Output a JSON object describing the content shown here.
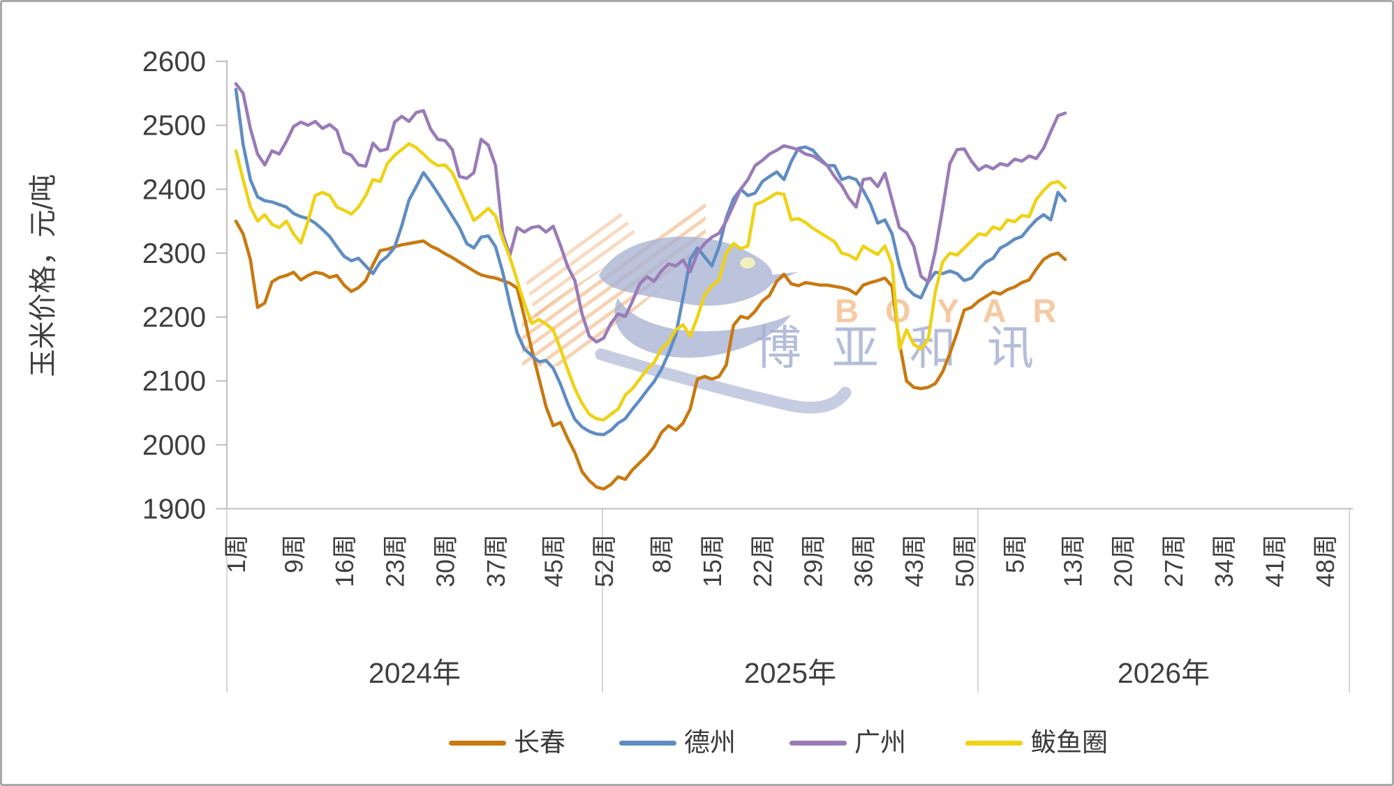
{
  "page": {
    "background": "#ffffff",
    "border_color": "#a9a9a9"
  },
  "watermark": {
    "latin": "BOYAR",
    "cjk": "博亚和讯"
  },
  "legend": [
    {
      "label": "长春",
      "color": "#C8790F"
    },
    {
      "label": "德州",
      "color": "#5F8DC3"
    },
    {
      "label": "广州",
      "color": "#9A7BB8"
    },
    {
      "label": "鲅鱼圈",
      "color": "#EFD215"
    }
  ],
  "chart_data": {
    "type": "line",
    "title": "",
    "ylabel": "玉米价格，元/吨",
    "xlabel": "",
    "ylim": [
      1900,
      2600
    ],
    "grid": false,
    "legend_position": "bottom",
    "y_ticks": [
      2600,
      2500,
      2400,
      2300,
      2200,
      2100,
      2000,
      1900
    ],
    "x_description": "weekly prices, 2024 week1 - 2026 week12; axis extends to 2026 week52",
    "x_ticks": [
      {
        "label": "1周",
        "i": 0
      },
      {
        "label": "9周",
        "i": 8
      },
      {
        "label": "16周",
        "i": 15
      },
      {
        "label": "23周",
        "i": 22
      },
      {
        "label": "30周",
        "i": 29
      },
      {
        "label": "37周",
        "i": 36
      },
      {
        "label": "45周",
        "i": 44
      },
      {
        "label": "52周",
        "i": 51
      },
      {
        "label": "8周",
        "i": 59
      },
      {
        "label": "15周",
        "i": 66
      },
      {
        "label": "22周",
        "i": 73
      },
      {
        "label": "29周",
        "i": 80
      },
      {
        "label": "36周",
        "i": 87
      },
      {
        "label": "43周",
        "i": 94
      },
      {
        "label": "50周",
        "i": 101
      },
      {
        "label": "5周",
        "i": 108
      },
      {
        "label": "13周",
        "i": 116
      },
      {
        "label": "20周",
        "i": 123
      },
      {
        "label": "27周",
        "i": 130
      },
      {
        "label": "34周",
        "i": 137
      },
      {
        "label": "41周",
        "i": 144
      },
      {
        "label": "48周",
        "i": 151
      }
    ],
    "year_groups": [
      {
        "label": "2024年",
        "weeks": 52
      },
      {
        "label": "2025年",
        "weeks": 52
      },
      {
        "label": "2026年",
        "weeks": 52
      }
    ],
    "series": [
      {
        "name": "长春",
        "color": "#C8790F",
        "values": [
          2350,
          2330,
          2290,
          2215,
          2222,
          2255,
          2262,
          2265,
          2270,
          2258,
          2265,
          2270,
          2268,
          2262,
          2265,
          2250,
          2240,
          2246,
          2257,
          2282,
          2304,
          2306,
          2310,
          2313,
          2315,
          2317,
          2319,
          2311,
          2306,
          2299,
          2293,
          2286,
          2279,
          2272,
          2266,
          2263,
          2261,
          2257,
          2253,
          2245,
          2200,
          2150,
          2105,
          2060,
          2030,
          2035,
          2010,
          1988,
          1958,
          1944,
          1934,
          1931,
          1938,
          1950,
          1946,
          1961,
          1972,
          1983,
          1997,
          2019,
          2030,
          2023,
          2034,
          2056,
          2103,
          2107,
          2103,
          2107,
          2125,
          2187,
          2201,
          2198,
          2209,
          2225,
          2234,
          2256,
          2267,
          2252,
          2249,
          2254,
          2252,
          2250,
          2250,
          2248,
          2246,
          2243,
          2236,
          2250,
          2254,
          2257,
          2261,
          2248,
          2160,
          2100,
          2090,
          2088,
          2090,
          2096,
          2114,
          2143,
          2175,
          2211,
          2215,
          2225,
          2232,
          2239,
          2236,
          2243,
          2247,
          2254,
          2258,
          2275,
          2290,
          2297,
          2300,
          2290
        ]
      },
      {
        "name": "德州",
        "color": "#5F8DC3",
        "values": [
          2556,
          2470,
          2415,
          2388,
          2382,
          2380,
          2376,
          2372,
          2362,
          2357,
          2354,
          2347,
          2337,
          2326,
          2310,
          2295,
          2288,
          2292,
          2280,
          2268,
          2286,
          2295,
          2309,
          2343,
          2383,
          2404,
          2426,
          2411,
          2394,
          2376,
          2358,
          2340,
          2315,
          2308,
          2325,
          2327,
          2310,
          2270,
          2220,
          2175,
          2150,
          2140,
          2130,
          2132,
          2120,
          2095,
          2065,
          2040,
          2028,
          2021,
          2017,
          2016,
          2023,
          2034,
          2041,
          2056,
          2070,
          2085,
          2099,
          2118,
          2143,
          2172,
          2230,
          2290,
          2308,
          2294,
          2280,
          2310,
          2355,
          2385,
          2400,
          2390,
          2394,
          2412,
          2420,
          2427,
          2415,
          2443,
          2464,
          2466,
          2461,
          2448,
          2437,
          2437,
          2415,
          2419,
          2415,
          2398,
          2377,
          2347,
          2352,
          2330,
          2280,
          2246,
          2235,
          2230,
          2255,
          2270,
          2268,
          2272,
          2268,
          2257,
          2261,
          2275,
          2286,
          2292,
          2308,
          2314,
          2322,
          2326,
          2340,
          2352,
          2360,
          2352,
          2395,
          2382
        ]
      },
      {
        "name": "广州",
        "color": "#9A7BB8",
        "values": [
          2565,
          2550,
          2495,
          2455,
          2438,
          2460,
          2455,
          2475,
          2498,
          2505,
          2500,
          2506,
          2495,
          2501,
          2492,
          2458,
          2453,
          2438,
          2436,
          2472,
          2460,
          2463,
          2505,
          2514,
          2506,
          2520,
          2523,
          2494,
          2478,
          2476,
          2462,
          2420,
          2417,
          2426,
          2478,
          2469,
          2437,
          2330,
          2297,
          2340,
          2333,
          2340,
          2342,
          2333,
          2342,
          2312,
          2279,
          2257,
          2205,
          2170,
          2161,
          2167,
          2190,
          2205,
          2201,
          2225,
          2252,
          2263,
          2256,
          2272,
          2283,
          2280,
          2289,
          2271,
          2300,
          2315,
          2325,
          2331,
          2350,
          2375,
          2400,
          2415,
          2437,
          2445,
          2455,
          2461,
          2468,
          2465,
          2462,
          2455,
          2452,
          2445,
          2437,
          2420,
          2406,
          2386,
          2372,
          2415,
          2417,
          2404,
          2425,
          2383,
          2340,
          2332,
          2311,
          2264,
          2255,
          2304,
          2369,
          2440,
          2462,
          2463,
          2444,
          2430,
          2437,
          2432,
          2440,
          2437,
          2447,
          2444,
          2452,
          2448,
          2464,
          2490,
          2515,
          2519
        ]
      },
      {
        "name": "鲅鱼圈",
        "color": "#EFD215",
        "values": [
          2460,
          2415,
          2372,
          2350,
          2360,
          2345,
          2340,
          2350,
          2330,
          2316,
          2350,
          2390,
          2395,
          2390,
          2372,
          2367,
          2361,
          2372,
          2390,
          2415,
          2412,
          2440,
          2453,
          2462,
          2471,
          2465,
          2455,
          2444,
          2437,
          2438,
          2426,
          2401,
          2376,
          2351,
          2360,
          2370,
          2358,
          2322,
          2293,
          2257,
          2221,
          2190,
          2196,
          2189,
          2180,
          2150,
          2118,
          2088,
          2065,
          2048,
          2041,
          2039,
          2048,
          2056,
          2078,
          2088,
          2103,
          2118,
          2129,
          2150,
          2161,
          2180,
          2188,
          2170,
          2200,
          2235,
          2249,
          2258,
          2300,
          2315,
          2307,
          2311,
          2376,
          2380,
          2387,
          2394,
          2392,
          2352,
          2354,
          2348,
          2339,
          2332,
          2325,
          2318,
          2300,
          2297,
          2290,
          2311,
          2304,
          2298,
          2311,
          2283,
          2150,
          2180,
          2157,
          2150,
          2165,
          2240,
          2286,
          2300,
          2297,
          2308,
          2319,
          2330,
          2328,
          2341,
          2337,
          2352,
          2349,
          2359,
          2357,
          2384,
          2398,
          2409,
          2412,
          2402
        ]
      }
    ]
  }
}
